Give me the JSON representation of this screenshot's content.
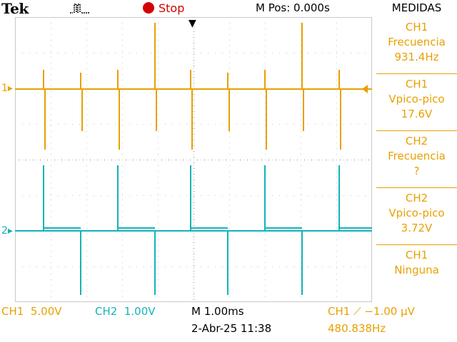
{
  "header": {
    "brand": "Tek",
    "acquisition_icon": "pulse-trigger-icon",
    "run_state": "Stop",
    "horizontal_position": "M Pos: 0.000s",
    "menu_title": "MEDIDAS"
  },
  "measurements": [
    {
      "channel": "CH1",
      "type": "Frecuencia",
      "value": "931.4Hz"
    },
    {
      "channel": "CH1",
      "type": "Vpico-pico",
      "value": "17.6V"
    },
    {
      "channel": "CH2",
      "type": "Frecuencia",
      "value": "?"
    },
    {
      "channel": "CH2",
      "type": "Vpico-pico",
      "value": "3.72V"
    },
    {
      "channel": "CH1",
      "type": "Ninguna",
      "value": ""
    }
  ],
  "markers": {
    "ch1": "1",
    "ch2": "2"
  },
  "status": {
    "ch1_scale": "CH1  5.00V",
    "ch2_scale": "CH2  1.00V",
    "timebase": "M 1.00ms",
    "datetime": "2-Abr-25 11:38",
    "trigger": "CH1 ⟋ −1.00 μV",
    "trigger_frequency": "480.838Hz"
  },
  "colors": {
    "ch1": "#e8a000",
    "ch2": "#14b3b8",
    "stop": "#d40000",
    "graticule": "#c8c8c8"
  }
}
